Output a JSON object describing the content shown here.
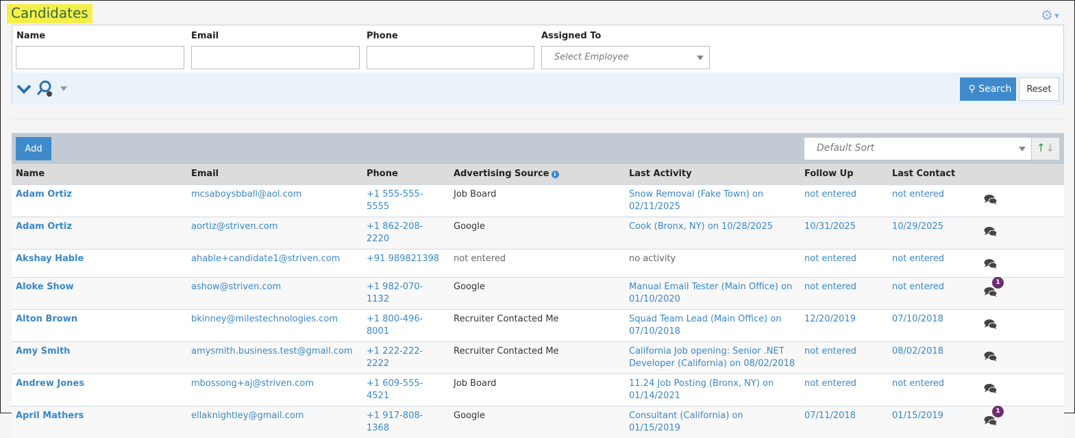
{
  "page": {
    "title": "Candidates"
  },
  "filters": {
    "name_label": "Name",
    "email_label": "Email",
    "phone_label": "Phone",
    "assigned_label": "Assigned To",
    "name_value": "",
    "email_value": "",
    "phone_value": "",
    "assigned_placeholder": "Select Employee",
    "search_label": "Search",
    "reset_label": "Reset"
  },
  "toolbar": {
    "add_label": "Add",
    "sort_value": "Default Sort"
  },
  "table": {
    "headers": [
      "Name",
      "Email",
      "Phone",
      "Advertising Source",
      "Last Activity",
      "Follow Up",
      "Last Contact"
    ],
    "rows": [
      {
        "name": "Adam Ortiz",
        "email": "mcsaboysbball@aol.com",
        "phone": "+1 555-555-5555",
        "source": "Job Board",
        "activity": "Snow Removal (Fake Town) on 02/11/2025",
        "follow": "not entered",
        "contact": "not entered",
        "badge": ""
      },
      {
        "name": "Adam Ortiz",
        "email": "aortiz@striven.com",
        "phone": "+1 862-208-2220",
        "source": "Google",
        "activity": "Cook (Bronx, NY) on 10/28/2025",
        "follow": "10/31/2025",
        "contact": "10/29/2025",
        "badge": ""
      },
      {
        "name": "Akshay Hable",
        "email": "ahable+candidate1@striven.com",
        "phone": "+91 989821398",
        "source": "not entered",
        "activity": "no activity",
        "follow": "not entered",
        "contact": "not entered",
        "badge": ""
      },
      {
        "name": "Aloke Show",
        "email": "ashow@striven.com",
        "phone": "+1 982-070-1132",
        "source": "Google",
        "activity": "Manual Email Tester (Main Office) on 01/10/2020",
        "follow": "not entered",
        "contact": "not entered",
        "badge": "1"
      },
      {
        "name": "Alton Brown",
        "email": "bkinney@milestechnologies.com",
        "phone": "+1 800-496-8001",
        "source": "Recruiter Contacted Me",
        "activity": "Squad Team Lead (Main Office) on 07/10/2018",
        "follow": "12/20/2019",
        "contact": "07/10/2018",
        "badge": ""
      },
      {
        "name": "Amy Smith",
        "email": "amysmith.business.test@gmail.com",
        "phone": "+1 222-222-2222",
        "source": "Recruiter Contacted Me",
        "activity": "California Job opening: Senior .NET Developer (California) on 08/02/2018",
        "follow": "not entered",
        "contact": "08/02/2018",
        "badge": ""
      },
      {
        "name": "Andrew Jones",
        "email": "mbossong+aj@striven.com",
        "phone": "+1 609-555-4521",
        "source": "Job Board",
        "activity": "11.24 Job Posting (Bronx, NY) on 01/14/2021",
        "follow": "not entered",
        "contact": "not entered",
        "badge": ""
      },
      {
        "name": "April Mathers",
        "email": "ellaknightley@gmail.com",
        "phone": "+1 917-808-1368",
        "source": "Google",
        "activity": "Consultant (California) on 01/15/2019",
        "follow": "07/11/2018",
        "contact": "01/15/2019",
        "badge": "1"
      }
    ]
  },
  "colors": {
    "accent": "#3f8acb",
    "title_highlight": "#f5ef4a",
    "badge": "#6b2e6f"
  }
}
